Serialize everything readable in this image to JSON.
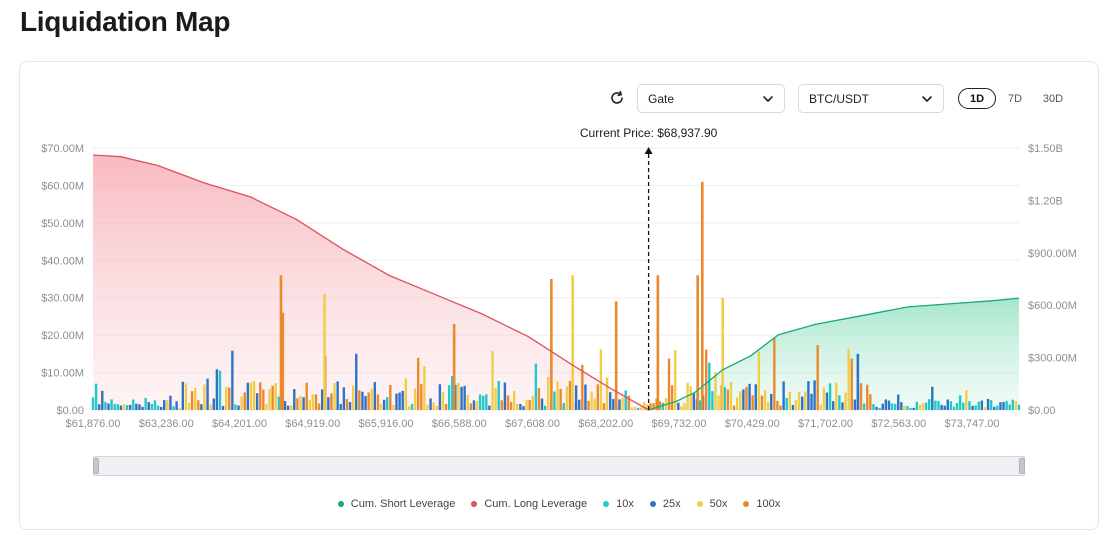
{
  "page": {
    "title": "Liquidation Map"
  },
  "controls": {
    "exchange": "Gate",
    "pair": "BTC/USDT",
    "timeframes": [
      "1D",
      "7D",
      "30D"
    ],
    "active_timeframe": "1D"
  },
  "colors": {
    "short": "#1aa876",
    "long": "#e0505b",
    "x10": "#25c7c7",
    "x25": "#2f72c6",
    "x50": "#f2cd4a",
    "x100": "#ea8a2c"
  },
  "chart_data": {
    "type": "bar",
    "title": "",
    "current_price_label": "Current Price: $68,937.90",
    "current_price": 68937.9,
    "x_tick_labels": [
      "$61,876.00",
      "$63,236.00",
      "$64,201.00",
      "$64,919.00",
      "$65,916.00",
      "$66,588.00",
      "$67,608.00",
      "$68,202.00",
      "$69,732.00",
      "$70,429.00",
      "$71,702.00",
      "$72,563.00",
      "$73,747.00"
    ],
    "y_left": {
      "ticks": [
        "$0.00",
        "$10.00M",
        "$20.00M",
        "$30.00M",
        "$40.00M",
        "$50.00M",
        "$60.00M",
        "$70.00M"
      ],
      "ylim": [
        0,
        70000000
      ]
    },
    "y_right": {
      "ticks": [
        "$0.00",
        "$300.00M",
        "$600.00M",
        "$900.00M",
        "$1.20B",
        "$1.50B"
      ],
      "ylim": [
        0,
        1500000000
      ]
    },
    "grid": true,
    "legend": {
      "position": "bottom",
      "entries": [
        "Cum. Short Leverage",
        "Cum. Long Leverage",
        "10x",
        "25x",
        "50x",
        "100x"
      ]
    },
    "series": [
      {
        "name": "Cum. Long Leverage",
        "axis": "right",
        "points": [
          [
            0,
            1460000000.0
          ],
          [
            0.03,
            1450000000.0
          ],
          [
            0.07,
            1400000000.0
          ],
          [
            0.12,
            1300000000.0
          ],
          [
            0.17,
            1220000000.0
          ],
          [
            0.22,
            1090000000.0
          ],
          [
            0.27,
            920000000.0
          ],
          [
            0.32,
            770000000.0
          ],
          [
            0.37,
            660000000.0
          ],
          [
            0.42,
            550000000.0
          ],
          [
            0.47,
            420000000.0
          ],
          [
            0.52,
            250000000.0
          ],
          [
            0.56,
            120000000.0
          ],
          [
            0.6,
            0.0
          ]
        ]
      },
      {
        "name": "Cum. Short Leverage",
        "axis": "right",
        "points": [
          [
            0.6,
            0.0
          ],
          [
            0.63,
            50000000.0
          ],
          [
            0.65,
            100000000.0
          ],
          [
            0.68,
            230000000.0
          ],
          [
            0.71,
            310000000.0
          ],
          [
            0.74,
            430000000.0
          ],
          [
            0.78,
            490000000.0
          ],
          [
            0.83,
            540000000.0
          ],
          [
            0.88,
            590000000.0
          ],
          [
            0.93,
            610000000.0
          ],
          [
            0.97,
            625000000.0
          ],
          [
            1.0,
            640000000.0
          ]
        ]
      }
    ],
    "bar_peaks_millions": [
      {
        "x": 0.203,
        "lev": "100x",
        "v": 36
      },
      {
        "x": 0.205,
        "lev": "100x",
        "v": 26
      },
      {
        "x": 0.25,
        "lev": "50x",
        "v": 31
      },
      {
        "x": 0.39,
        "lev": "100x",
        "v": 23
      },
      {
        "x": 0.495,
        "lev": "100x",
        "v": 35
      },
      {
        "x": 0.518,
        "lev": "50x",
        "v": 36
      },
      {
        "x": 0.565,
        "lev": "100x",
        "v": 29
      },
      {
        "x": 0.61,
        "lev": "100x",
        "v": 36
      },
      {
        "x": 0.658,
        "lev": "100x",
        "v": 61
      },
      {
        "x": 0.653,
        "lev": "100x",
        "v": 36
      },
      {
        "x": 0.68,
        "lev": "50x",
        "v": 30
      },
      {
        "x": 0.826,
        "lev": "25x",
        "v": 15
      }
    ]
  }
}
